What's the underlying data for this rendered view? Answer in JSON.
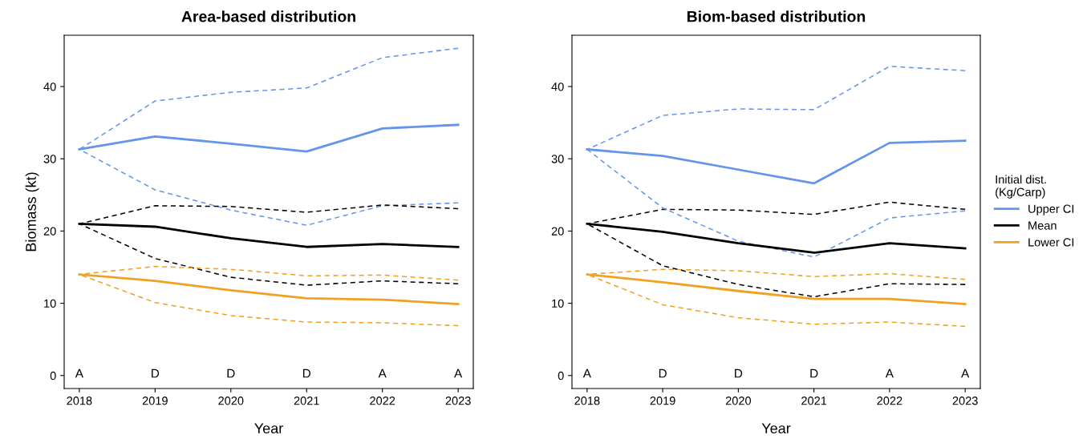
{
  "chart_data": [
    {
      "type": "line",
      "title": "Area-based distribution",
      "xlabel": "Year",
      "ylabel": "Biomass (kt)",
      "x": [
        2018,
        2019,
        2020,
        2021,
        2022,
        2023
      ],
      "xlim": [
        2017.8,
        2023.2
      ],
      "xticks": [
        2018,
        2019,
        2020,
        2021,
        2022,
        2023
      ],
      "ylim": [
        -1.8,
        47.1
      ],
      "yticks": [
        0,
        10,
        20,
        30,
        40
      ],
      "grid": false,
      "legend": false,
      "series": [
        {
          "color": "#6495ed",
          "line_style": "solid",
          "values": [
            31.3,
            33.1,
            32.1,
            31.0,
            34.2,
            34.7
          ]
        },
        {
          "color": "#6495ed",
          "line_style": "dashed",
          "values": [
            31.3,
            38.0,
            39.2,
            39.8,
            44.0,
            45.3
          ]
        },
        {
          "color": "#6495ed",
          "line_style": "dashed",
          "values": [
            31.3,
            25.7,
            22.9,
            20.8,
            23.5,
            23.9
          ]
        },
        {
          "color": "#000000",
          "line_style": "solid",
          "values": [
            21.0,
            20.6,
            19.0,
            17.8,
            18.2,
            17.8
          ]
        },
        {
          "color": "#000000",
          "line_style": "dashed",
          "values": [
            21.0,
            23.5,
            23.4,
            22.6,
            23.6,
            23.1
          ]
        },
        {
          "color": "#000000",
          "line_style": "dashed",
          "values": [
            21.0,
            16.2,
            13.6,
            12.5,
            13.1,
            12.7
          ]
        },
        {
          "color": "#f0a122",
          "line_style": "solid",
          "values": [
            14.0,
            13.1,
            11.8,
            10.7,
            10.5,
            9.9
          ]
        },
        {
          "color": "#f0a122",
          "line_style": "dashed",
          "values": [
            14.0,
            15.1,
            14.7,
            13.8,
            13.9,
            13.2
          ]
        },
        {
          "color": "#f0a122",
          "line_style": "dashed",
          "values": [
            14.0,
            10.1,
            8.3,
            7.4,
            7.3,
            6.9
          ]
        }
      ],
      "annotations": [
        "A",
        "D",
        "D",
        "D",
        "A",
        "A"
      ]
    },
    {
      "type": "line",
      "title": "Biom-based distribution",
      "xlabel": "Year",
      "legend_title": "Initial dist.\n(Kg/Carp)",
      "x": [
        2018,
        2019,
        2020,
        2021,
        2022,
        2023
      ],
      "xlim": [
        2017.8,
        2023.2
      ],
      "xticks": [
        2018,
        2019,
        2020,
        2021,
        2022,
        2023
      ],
      "ylim": [
        -1.8,
        47.1
      ],
      "yticks": [
        0,
        10,
        20,
        30,
        40
      ],
      "grid": false,
      "legend": "right",
      "series": [
        {
          "name": "Upper CI",
          "color": "#6495ed",
          "line_style": "solid",
          "values": [
            31.3,
            30.4,
            28.5,
            26.6,
            32.2,
            32.5
          ]
        },
        {
          "color": "#6495ed",
          "line_style": "dashed",
          "values": [
            31.3,
            36.0,
            36.9,
            36.8,
            42.8,
            42.2
          ]
        },
        {
          "color": "#6495ed",
          "line_style": "dashed",
          "values": [
            31.3,
            23.2,
            18.6,
            16.4,
            21.8,
            22.8
          ]
        },
        {
          "name": "Mean",
          "color": "#000000",
          "line_style": "solid",
          "values": [
            21.0,
            19.9,
            18.3,
            17.0,
            18.3,
            17.6
          ]
        },
        {
          "color": "#000000",
          "line_style": "dashed",
          "values": [
            21.0,
            23.0,
            22.9,
            22.3,
            24.0,
            23.0
          ]
        },
        {
          "color": "#000000",
          "line_style": "dashed",
          "values": [
            21.0,
            15.2,
            12.6,
            10.9,
            12.7,
            12.6
          ]
        },
        {
          "name": "Lower CI",
          "color": "#f0a122",
          "line_style": "solid",
          "values": [
            14.0,
            12.9,
            11.7,
            10.6,
            10.6,
            9.9
          ]
        },
        {
          "color": "#f0a122",
          "line_style": "dashed",
          "values": [
            14.0,
            14.7,
            14.5,
            13.7,
            14.1,
            13.3
          ]
        },
        {
          "color": "#f0a122",
          "line_style": "dashed",
          "values": [
            14.0,
            9.8,
            8.0,
            7.1,
            7.4,
            6.8
          ]
        }
      ],
      "annotations": [
        "A",
        "D",
        "D",
        "D",
        "A",
        "A"
      ]
    }
  ]
}
